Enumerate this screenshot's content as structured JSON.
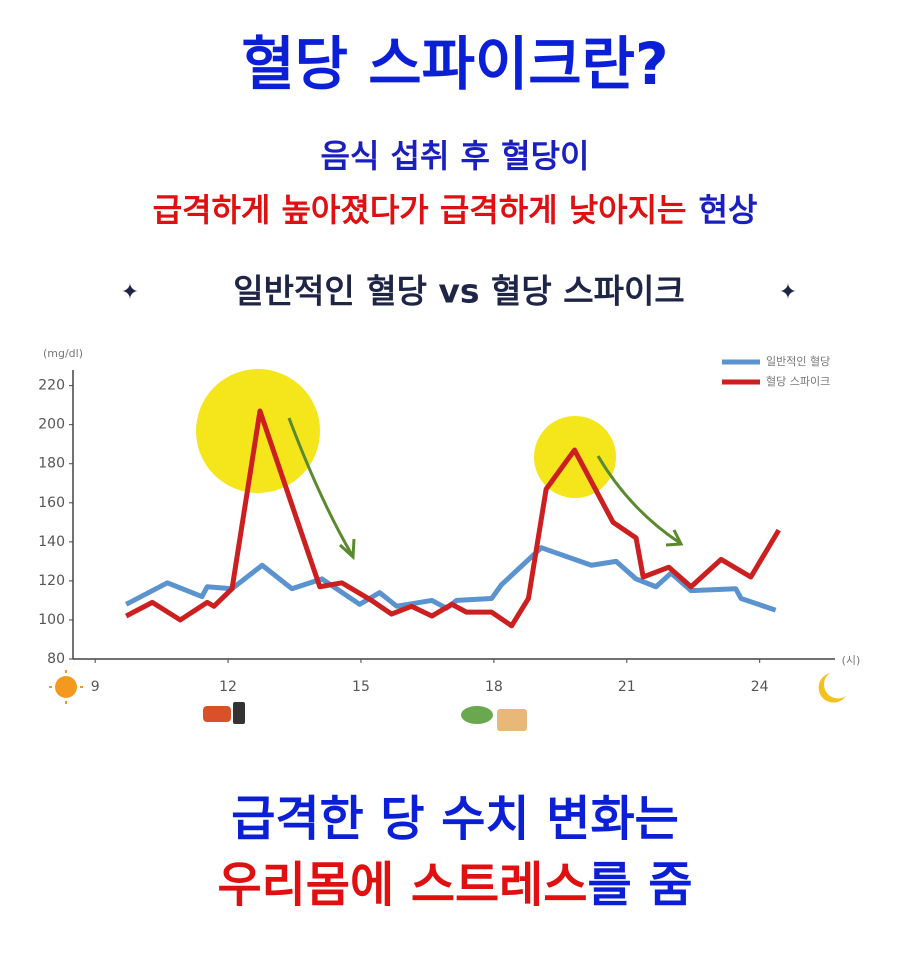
{
  "title": "혈당 스파이크란?",
  "subtitle": {
    "line1": "음식 섭취 후 혈당이",
    "line2_red": "급격하게 높아졌다가 급격하게 낮아지는",
    "line2_blue": "현상"
  },
  "chart_data": {
    "type": "line",
    "title": "일반적인 혈당 vs 혈당 스파이크",
    "y_label": "(mg/dl)",
    "x_label": "(시)",
    "xlim": [
      8.5,
      25.7
    ],
    "xticks": [
      9,
      12,
      15,
      18,
      21,
      24
    ],
    "ylim": [
      80,
      228
    ],
    "yticks": [
      80,
      100,
      120,
      140,
      160,
      180,
      200,
      220
    ],
    "grid": false,
    "legend": "upper right",
    "series": [
      {
        "name": "일반적인 혈당",
        "color": "#5b93cf",
        "x": [
          9.7,
          10.63,
          11.41,
          11.53,
          12.09,
          12.77,
          13.44,
          14.12,
          14.97,
          15.42,
          15.81,
          16.6,
          16.93,
          17.16,
          17.95,
          18.17,
          19.07,
          20.2,
          20.76,
          21.21,
          21.66,
          22.0,
          22.45,
          23.46,
          23.58,
          24.36
        ],
        "values": [
          108,
          119,
          112,
          117,
          116,
          128,
          116,
          121,
          108,
          114,
          107,
          110,
          106,
          110,
          111,
          118,
          137,
          128,
          130,
          121,
          117,
          124,
          115,
          116,
          111,
          105
        ]
      },
      {
        "name": "혈당 스파이크",
        "color": "#cc1f1f",
        "x": [
          9.7,
          10.29,
          10.92,
          11.53,
          11.68,
          12.09,
          12.72,
          14.07,
          14.57,
          15.24,
          15.69,
          16.14,
          16.6,
          17.05,
          17.38,
          17.95,
          18.4,
          18.78,
          19.18,
          19.82,
          20.69,
          21.21,
          21.37,
          21.95,
          22.45,
          23.13,
          23.8,
          24.43
        ],
        "values": [
          102,
          109,
          100,
          109,
          107,
          116,
          207,
          117,
          119,
          110,
          103,
          107,
          102,
          108,
          104,
          104,
          97,
          111,
          167,
          187,
          150,
          142,
          122,
          127,
          117,
          131,
          122,
          146
        ]
      }
    ]
  },
  "footer": {
    "line1": "급격한 당 수치 변화는",
    "line2_red": "우리몸에 스트레스",
    "line2_blue": "를 줌"
  }
}
